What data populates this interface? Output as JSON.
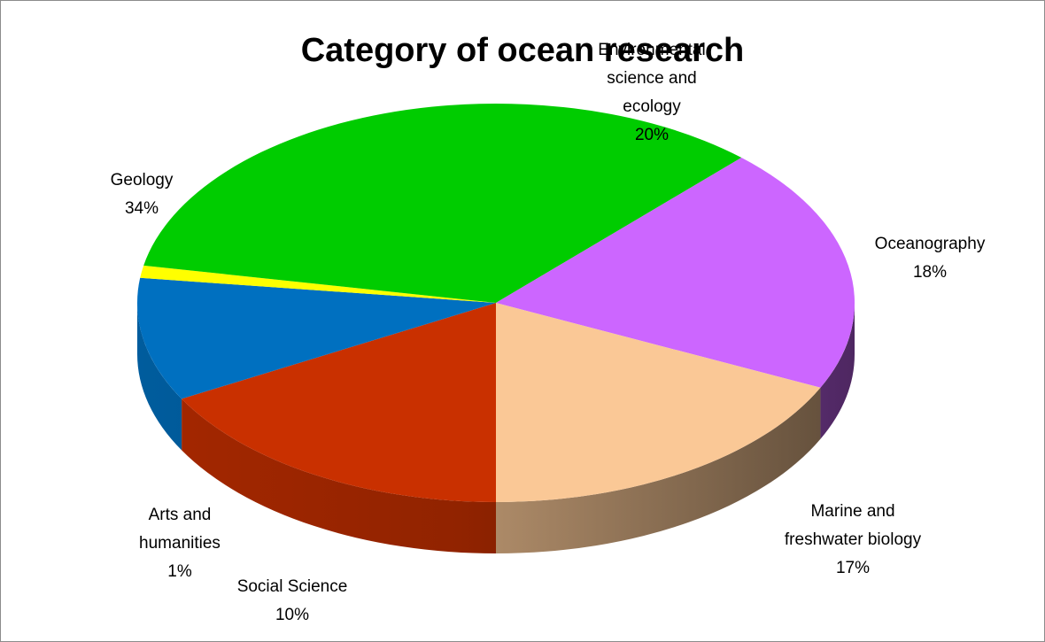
{
  "chart_data": {
    "type": "pie",
    "title": "Category of ocean research",
    "style": "3d",
    "legend": "none",
    "slices": [
      {
        "label_lines": [
          "Marine and",
          "freshwater biology"
        ],
        "value": 17,
        "value_label": "17%",
        "color": "#c93000"
      },
      {
        "label_lines": [
          "Social Science"
        ],
        "value": 10,
        "value_label": "10%",
        "color": "#0070c0"
      },
      {
        "label_lines": [
          "Arts and",
          "humanities"
        ],
        "value": 1,
        "value_label": "1%",
        "color": "#ffff00"
      },
      {
        "label_lines": [
          "Geology"
        ],
        "value": 34,
        "value_label": "34%",
        "color": "#00cc00"
      },
      {
        "label_lines": [
          "Environmental",
          "science and",
          "ecology"
        ],
        "value": 20,
        "value_label": "20%",
        "color": "#cc66ff"
      },
      {
        "label_lines": [
          "Oceanography"
        ],
        "value": 18,
        "value_label": "18%",
        "color": "#fac896"
      }
    ]
  }
}
